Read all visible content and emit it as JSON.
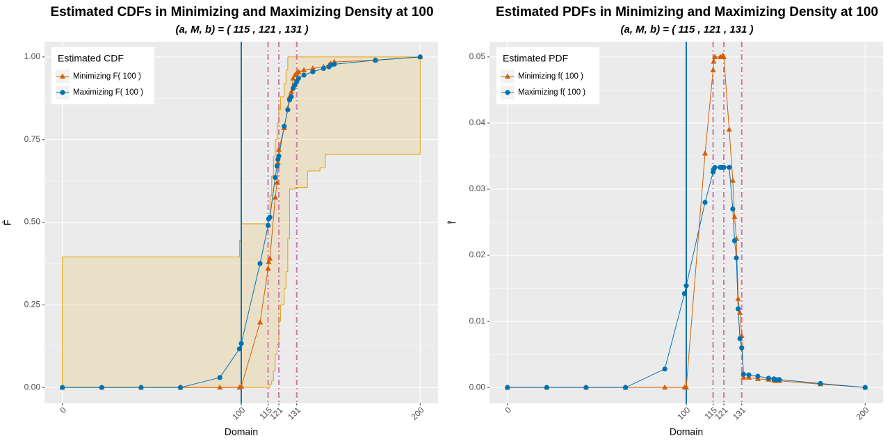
{
  "chart_data": [
    {
      "type": "line",
      "title": "Estimated CDFs in Minimizing and Maximizing Density at 100",
      "subtitle": "(a, M, b) = ( 115 , 121 , 131 )",
      "x_label": "Domain",
      "y_label": "F̂",
      "legend_title": "Estimated CDF",
      "legend": "top-left",
      "grid": true,
      "xlim": [
        -10,
        210
      ],
      "ylim": [
        -0.048,
        1.046
      ],
      "xticks": [
        0,
        100,
        115,
        121,
        131,
        200
      ],
      "yticks": [
        {
          "value": 0,
          "label": "0.00"
        },
        0.25,
        {
          "value": 0.5,
          "label": "0.50"
        },
        0.75,
        {
          "value": 1,
          "label": "1.00"
        }
      ],
      "vline": {
        "x": 100,
        "color": "#0072b2"
      },
      "reference_lines": {
        "x": [
          115,
          121,
          131
        ],
        "color": "#cc79a7"
      },
      "x": [
        0,
        22,
        44,
        66,
        88,
        99,
        100,
        110.5,
        115,
        115.3,
        116,
        119,
        120,
        120.5,
        121,
        124,
        126,
        127,
        128,
        129,
        130,
        131,
        132,
        135,
        140,
        146,
        149,
        150,
        152,
        175,
        200
      ],
      "series": [
        {
          "name": "Minimizing F( 100 )",
          "color": "#d55e00",
          "marker": "triangle",
          "values": [
            0,
            0,
            0,
            0,
            0,
            0,
            0.003,
            0.197,
            0.36,
            0.38,
            0.39,
            0.575,
            0.62,
            0.68,
            0.72,
            0.785,
            0.845,
            0.88,
            0.895,
            0.935,
            0.945,
            0.95,
            0.955,
            0.96,
            0.965,
            0.97,
            0.975,
            0.98,
            0.985,
            0.99,
            1.0
          ]
        },
        {
          "name": "Maximizing F( 100 )",
          "color": "#0072b2",
          "marker": "circle",
          "values": [
            0,
            0,
            0,
            0,
            0.03,
            0.117,
            0.133,
            0.375,
            0.49,
            0.51,
            0.515,
            0.635,
            0.67,
            0.69,
            0.7,
            0.79,
            0.84,
            0.87,
            0.88,
            0.905,
            0.915,
            0.925,
            0.935,
            0.945,
            0.955,
            0.965,
            0.97,
            0.975,
            0.978,
            0.99,
            1.0
          ]
        }
      ],
      "band": {
        "color": "#e69f00",
        "x": [
          0,
          99,
          100,
          115,
          116,
          117,
          118,
          119,
          120,
          121,
          122,
          124,
          125,
          126,
          127,
          130,
          137,
          144,
          147,
          200
        ],
        "lower": [
          0,
          0,
          0,
          0,
          0.01,
          0.02,
          0.05,
          0.1,
          0.13,
          0.2,
          0.25,
          0.3,
          0.35,
          0.45,
          0.6,
          0.605,
          0.655,
          0.665,
          0.705,
          0.705
        ],
        "upper": [
          0.395,
          0.445,
          0.495,
          0.52,
          0.58,
          0.64,
          0.7,
          0.75,
          0.8,
          0.84,
          0.88,
          0.92,
          0.96,
          1,
          1,
          1,
          1,
          1,
          1,
          1
        ]
      }
    },
    {
      "type": "line",
      "title": "Estimated PDFs in Minimizing and Maximizing Density at 100",
      "subtitle": "(a, M, b) = ( 115 , 121 , 131 )",
      "x_label": "Domain",
      "y_label": "f̂",
      "legend_title": "Estimated PDF",
      "legend": "top-left",
      "grid": true,
      "xlim": [
        -10,
        210
      ],
      "ylim": [
        -0.0024,
        0.0523
      ],
      "xticks": [
        0,
        100,
        115,
        121,
        131,
        200
      ],
      "yticks": [
        {
          "value": 0,
          "label": "0.00"
        },
        0.01,
        0.02,
        0.03,
        0.04,
        0.05
      ],
      "vline": {
        "x": 100,
        "color": "#0072b2"
      },
      "reference_lines": {
        "x": [
          115,
          121,
          131
        ],
        "color": "#cc79a7"
      },
      "x": [
        0,
        22,
        44,
        66,
        88,
        99,
        100,
        110.5,
        115,
        115.3,
        116,
        119,
        120,
        120.5,
        121,
        124,
        126,
        127,
        128,
        129,
        130,
        131,
        132,
        135,
        140,
        146,
        149,
        150,
        152,
        175,
        200
      ],
      "series": [
        {
          "name": "Minimizing f( 100 )",
          "color": "#d55e00",
          "marker": "triangle",
          "values": [
            0,
            0,
            0,
            0,
            0,
            0,
            0,
            0.0354,
            0.048,
            0.0493,
            0.05,
            0.05,
            0.05,
            0.0502,
            0.05,
            0.039,
            0.0313,
            0.0258,
            0.0225,
            0.0134,
            0.0113,
            0.0078,
            0.0015,
            0.0015,
            0.0013,
            0.0012,
            0.0011,
            0.001,
            0.001,
            0.0005,
            0
          ]
        },
        {
          "name": "Maximizing f( 100 )",
          "color": "#0072b2",
          "marker": "circle",
          "values": [
            0,
            0,
            0,
            0,
            0.0028,
            0.0142,
            0.0154,
            0.028,
            0.0326,
            0.033,
            0.0333,
            0.0333,
            0.0333,
            0.0333,
            0.0333,
            0.0333,
            0.027,
            0.0222,
            0.0196,
            0.0119,
            0.0074,
            0.006,
            0.002,
            0.0019,
            0.0017,
            0.0014,
            0.0013,
            0.0012,
            0.0012,
            0.0006,
            0
          ]
        }
      ]
    }
  ]
}
